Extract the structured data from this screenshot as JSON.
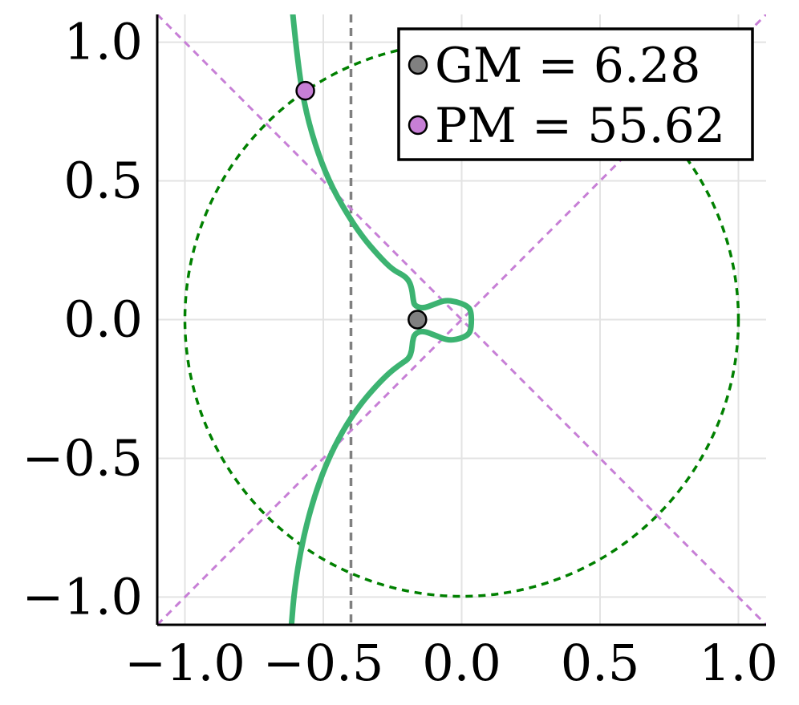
{
  "chart_data": {
    "type": "line",
    "title": "",
    "xlabel": "",
    "ylabel": "",
    "xlim": [
      -1.1,
      1.1
    ],
    "ylim": [
      -1.1,
      1.1
    ],
    "x_ticks": [
      -1.0,
      -0.5,
      0.0,
      0.5,
      1.0
    ],
    "y_ticks": [
      -1.0,
      -0.5,
      0.0,
      0.5,
      1.0
    ],
    "x_tick_labels": [
      "−1.0",
      "−0.5",
      "0.0",
      "0.5",
      "1.0"
    ],
    "y_tick_labels": [
      "−1.0",
      "−0.5",
      "0.0",
      "0.5",
      "1.0"
    ],
    "grid": true,
    "legend_placement": "top-right",
    "series": [
      {
        "kind": "nyquist-curve",
        "color": "#3cb371",
        "points": [
          [
            -0.61,
            1.1
          ],
          [
            -0.595,
            0.95
          ],
          [
            -0.57,
            0.78
          ],
          [
            -0.53,
            0.63
          ],
          [
            -0.48,
            0.5
          ],
          [
            -0.42,
            0.39
          ],
          [
            -0.36,
            0.3
          ],
          [
            -0.3,
            0.23
          ],
          [
            -0.25,
            0.18
          ],
          [
            -0.21,
            0.16
          ],
          [
            -0.19,
            0.14
          ],
          [
            -0.18,
            0.11
          ],
          [
            -0.175,
            0.07
          ],
          [
            -0.17,
            0.05
          ],
          [
            -0.14,
            0.04
          ],
          [
            -0.1,
            0.055
          ],
          [
            -0.06,
            0.07
          ],
          [
            -0.02,
            0.065
          ],
          [
            0.02,
            0.05
          ],
          [
            0.035,
            0.03
          ],
          [
            0.035,
            -0.03
          ],
          [
            0.025,
            -0.055
          ],
          [
            -0.01,
            -0.07
          ],
          [
            -0.05,
            -0.075
          ],
          [
            -0.1,
            -0.055
          ],
          [
            -0.14,
            -0.04
          ],
          [
            -0.17,
            -0.05
          ],
          [
            -0.178,
            -0.08
          ],
          [
            -0.18,
            -0.11
          ],
          [
            -0.19,
            -0.14
          ],
          [
            -0.22,
            -0.16
          ],
          [
            -0.26,
            -0.19
          ],
          [
            -0.31,
            -0.24
          ],
          [
            -0.37,
            -0.31
          ],
          [
            -0.43,
            -0.4
          ],
          [
            -0.49,
            -0.52
          ],
          [
            -0.54,
            -0.66
          ],
          [
            -0.58,
            -0.82
          ],
          [
            -0.605,
            -0.98
          ],
          [
            -0.615,
            -1.1
          ]
        ]
      },
      {
        "kind": "unit-circle",
        "color": "#008000",
        "center": [
          0,
          0
        ],
        "radius": 1
      },
      {
        "kind": "vertical-line",
        "color": "#808080",
        "x": -0.4
      },
      {
        "kind": "diagonal-line",
        "color": "#c77fd6",
        "from": [
          -1.1,
          1.1
        ],
        "to": [
          1.1,
          -1.1
        ]
      },
      {
        "kind": "diagonal-line",
        "color": "#c77fd6",
        "from": [
          -1.1,
          -1.1
        ],
        "to": [
          1.1,
          1.1
        ]
      }
    ],
    "markers": [
      {
        "name": "GM",
        "x": -0.16,
        "y": 0.0,
        "color": "#808080"
      },
      {
        "name": "PM",
        "x": -0.565,
        "y": 0.825,
        "color": "#c77fd6"
      }
    ],
    "legend": [
      {
        "label": "GM = 6.28",
        "color": "#808080"
      },
      {
        "label": "PM = 55.62",
        "color": "#c77fd6"
      }
    ]
  }
}
